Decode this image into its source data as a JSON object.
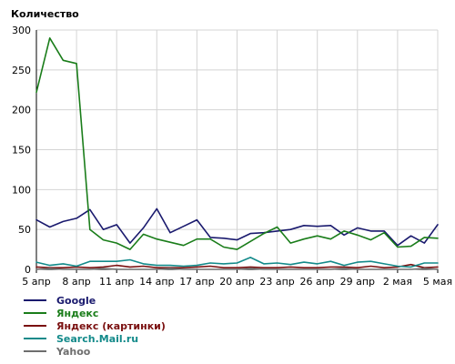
{
  "chart_data": {
    "type": "line",
    "title": "Количество",
    "xlabel": "",
    "ylabel": "",
    "ylim": [
      0,
      300
    ],
    "y_ticks": [
      0,
      50,
      100,
      150,
      200,
      250,
      300
    ],
    "x_tick_labels": [
      "5 апр",
      "8 апр",
      "11 апр",
      "14 апр",
      "17 апр",
      "20 апр",
      "23 апр",
      "26 апр",
      "29 апр",
      "2 мая",
      "5 мая"
    ],
    "x_count": 31,
    "x_tick_step": 3,
    "grid": true,
    "legend": "bottom-left",
    "series": [
      {
        "name": "Google",
        "color": "#1a1a6e",
        "values": [
          62,
          53,
          60,
          64,
          75,
          50,
          56,
          33,
          52,
          76,
          46,
          54,
          62,
          40,
          39,
          37,
          45,
          46,
          48,
          50,
          55,
          54,
          55,
          43,
          52,
          48,
          48,
          30,
          42,
          33,
          56
        ]
      },
      {
        "name": "Яндекс",
        "color": "#1a7d1a",
        "values": [
          222,
          290,
          262,
          258,
          50,
          37,
          33,
          25,
          44,
          38,
          34,
          30,
          38,
          38,
          28,
          25,
          35,
          45,
          53,
          33,
          38,
          42,
          38,
          48,
          43,
          37,
          46,
          28,
          29,
          40,
          39
        ]
      },
      {
        "name": "Яндекс (картинки)",
        "color": "#7a1010",
        "values": [
          3,
          2,
          2,
          3,
          2,
          3,
          5,
          3,
          4,
          2,
          2,
          2,
          3,
          4,
          2,
          2,
          3,
          2,
          2,
          3,
          2,
          2,
          3,
          3,
          2,
          4,
          2,
          3,
          6,
          2,
          3
        ]
      },
      {
        "name": "Search.Mail.ru",
        "color": "#138a8a",
        "values": [
          9,
          5,
          7,
          4,
          10,
          10,
          10,
          12,
          7,
          5,
          5,
          4,
          5,
          8,
          7,
          8,
          15,
          7,
          8,
          6,
          9,
          7,
          10,
          5,
          9,
          10,
          7,
          4,
          3,
          8,
          8
        ]
      },
      {
        "name": "Yahoo",
        "color": "#6e6e6e",
        "values": [
          0,
          1,
          0,
          0,
          0,
          1,
          0,
          0,
          0,
          0,
          1,
          0,
          0,
          0,
          0,
          0,
          1,
          0,
          0,
          0,
          0,
          0,
          0,
          1,
          0,
          0,
          0,
          0,
          0,
          1,
          0
        ]
      }
    ]
  }
}
